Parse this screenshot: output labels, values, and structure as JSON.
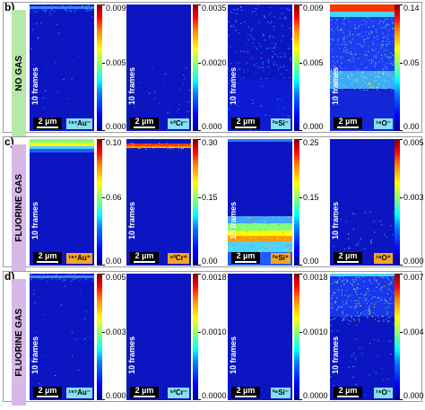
{
  "colors": {
    "nogas_label_bg": "#b6e8a8",
    "fluorine_label_bg": "#d7b8e6",
    "neg_ion_tag": "#86dff2",
    "pos_ion_tag": "#f5a623",
    "map_background": "#0b16c2"
  },
  "rows": [
    {
      "letter": "b)",
      "label": "NO GAS",
      "label_color": "#b6e8a8",
      "panels": [
        {
          "ion": "¹⁹⁷Au⁻",
          "tag": "neg",
          "ticks": [
            "0.009",
            "0.005",
            "0.000"
          ],
          "pattern": "top-thin"
        },
        {
          "ion": "⁵²Cr⁻",
          "tag": "neg",
          "ticks": [
            "0.0035",
            "0.0020",
            "0.000"
          ],
          "pattern": "sparse"
        },
        {
          "ion": "²⁸Si⁻",
          "tag": "neg",
          "ticks": [
            "0.009",
            "0.005",
            "0.000"
          ],
          "pattern": "si-nogas"
        },
        {
          "ion": "¹⁶O⁻",
          "tag": "neg",
          "ticks": [
            "0.14",
            "0.05",
            "0.00"
          ],
          "pattern": "o-nogas"
        }
      ]
    },
    {
      "letter": "c)",
      "label": "FLUORINE GAS",
      "label_color": "#d7b8e6",
      "panels": [
        {
          "ion": "¹⁹⁷Au⁺",
          "tag": "pos",
          "ticks": [
            "0.10",
            "0.06",
            "0.00"
          ],
          "pattern": "au-band"
        },
        {
          "ion": "⁵²Cr⁺",
          "tag": "pos",
          "ticks": [
            "0.30",
            "0.15",
            "0.00"
          ],
          "pattern": "cr-band"
        },
        {
          "ion": "²⁸Si⁺",
          "tag": "pos",
          "ticks": [
            "0.25",
            "0.15",
            "0.00"
          ],
          "pattern": "si-pos"
        },
        {
          "ion": "¹⁶O⁺",
          "tag": "pos",
          "ticks": [
            "0.005",
            "0.003",
            "0.000"
          ],
          "pattern": "sparse-low"
        }
      ]
    },
    {
      "letter": "d)",
      "label": "FLUORINE GAS",
      "label_color": "#d7b8e6",
      "panels": [
        {
          "ion": "¹⁹⁷Au⁻",
          "tag": "neg",
          "ticks": [
            "0.005",
            "0.003",
            "0.000"
          ],
          "pattern": "top-thin"
        },
        {
          "ion": "⁵²Cr⁻",
          "tag": "neg",
          "ticks": [
            "0.0018",
            "0.0010",
            "0.0000"
          ],
          "pattern": "plain"
        },
        {
          "ion": "²⁸Si⁻",
          "tag": "neg",
          "ticks": [
            "0.0018",
            "0.0010",
            "0.0000"
          ],
          "pattern": "plain"
        },
        {
          "ion": "¹⁶O⁻",
          "tag": "neg",
          "ticks": [
            "0.007",
            "0.004",
            "0.000"
          ],
          "pattern": "o-fluor"
        }
      ]
    }
  ],
  "scale_bar": "2 µm",
  "frames_label": "10 frames"
}
